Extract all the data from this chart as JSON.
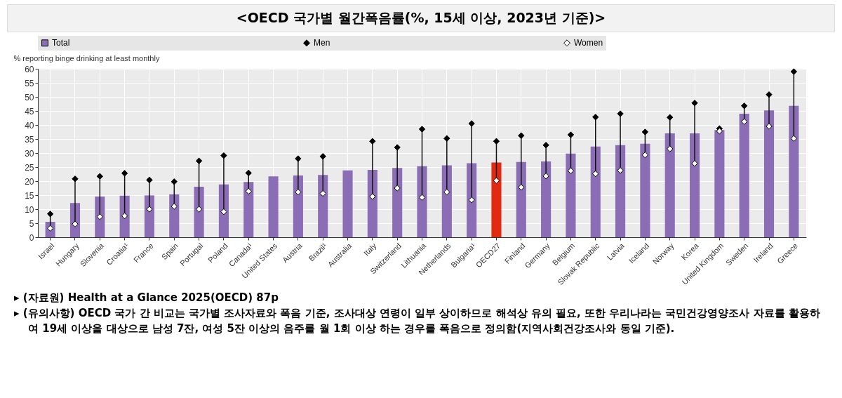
{
  "chart_data": {
    "type": "bar",
    "title": "<OECD 국가별 월간폭음률(%, 15세 이상, 2023년 기준)>",
    "ylabel": "% reporting binge drinking at least monthly",
    "categories": [
      "Israel",
      "Hungary",
      "Slovenia",
      "Croatia¹",
      "France",
      "Spain",
      "Portugal",
      "Poland",
      "Canada¹",
      "United States",
      "Austria",
      "Brazil¹",
      "Australia",
      "Italy",
      "Switzerland",
      "Lithuania",
      "Netherlands",
      "Bulgaria¹",
      "OECD27",
      "Finland",
      "Germany",
      "Belgium",
      "Slovak Republic",
      "Latvia",
      "Iceland",
      "Norway",
      "Korea",
      "United Kingdom",
      "Sweden",
      "Ireland",
      "Greece"
    ],
    "series": [
      {
        "name": "Total",
        "color": "#8a6db5",
        "colors": [
          "#8a6db5",
          "#8a6db5",
          "#8a6db5",
          "#8a6db5",
          "#8a6db5",
          "#8a6db5",
          "#8a6db5",
          "#8a6db5",
          "#8a6db5",
          "#8a6db5",
          "#8a6db5",
          "#8a6db5",
          "#8a6db5",
          "#8a6db5",
          "#8a6db5",
          "#8a6db5",
          "#8a6db5",
          "#8a6db5",
          "#e02b12",
          "#8a6db5",
          "#8a6db5",
          "#8a6db5",
          "#8a6db5",
          "#8a6db5",
          "#8a6db5",
          "#8a6db5",
          "#8a6db5",
          "#8a6db5",
          "#8a6db5",
          "#8a6db5",
          "#8a6db5"
        ],
        "values": [
          5.5,
          12.2,
          14.5,
          14.8,
          14.9,
          15.3,
          18,
          18.8,
          19.7,
          21.7,
          22,
          22.2,
          23.8,
          24,
          24.7,
          25.3,
          25.6,
          26.4,
          26.6,
          26.8,
          27,
          29.8,
          32.3,
          32.8,
          33.3,
          37,
          37,
          38.2,
          44,
          45.2,
          46.8
        ]
      },
      {
        "name": "Men",
        "type": "scatter",
        "marker": "diamond",
        "color": "#000000",
        "values": [
          8.3,
          20.8,
          21.7,
          22.8,
          20.4,
          19.8,
          27.2,
          29.1,
          22.9,
          null,
          28,
          28.8,
          null,
          34.2,
          32,
          38.5,
          35.2,
          40.5,
          34.2,
          36.2,
          32.8,
          36.5,
          42.8,
          44,
          37.5,
          42.7,
          47.8,
          38.7,
          46.8,
          50.8,
          59
        ]
      },
      {
        "name": "Women",
        "type": "scatter",
        "marker": "diamond",
        "color": "#ffffff",
        "values": [
          3.2,
          4.7,
          7.3,
          7.6,
          10,
          11,
          10,
          9.1,
          16.4,
          null,
          16.1,
          15.6,
          null,
          14.5,
          17.5,
          14.2,
          16.1,
          13.3,
          20.2,
          17.8,
          21.8,
          23.7,
          22.6,
          23.8,
          29.3,
          31.5,
          26.3,
          37.8,
          41.2,
          39.5,
          35.2
        ]
      }
    ],
    "ylim": [
      0,
      60
    ],
    "yticks": [
      0,
      5,
      10,
      15,
      20,
      25,
      30,
      35,
      40,
      45,
      50,
      55,
      60
    ],
    "grid": true,
    "legend": "top",
    "annotations": [
      "▸ (자료원) Health at a Glance 2025(OECD) 87p",
      "▸ (유의사항) OECD 국가 간 비교는 국가별 조사자료와 폭음 기준, 조사대상 연령이 일부 상이하므로 해석상 유의 필요, 또한 우리나라는 국민건강영양조사 자료를 활용하여 19세 이상을 대상으로 남성 7잔, 여성 5잔 이상의 음주를 월 1회 이상 하는 경우를 폭음으로 정의함(지역사회건강조사와 동일 기준)."
    ]
  }
}
